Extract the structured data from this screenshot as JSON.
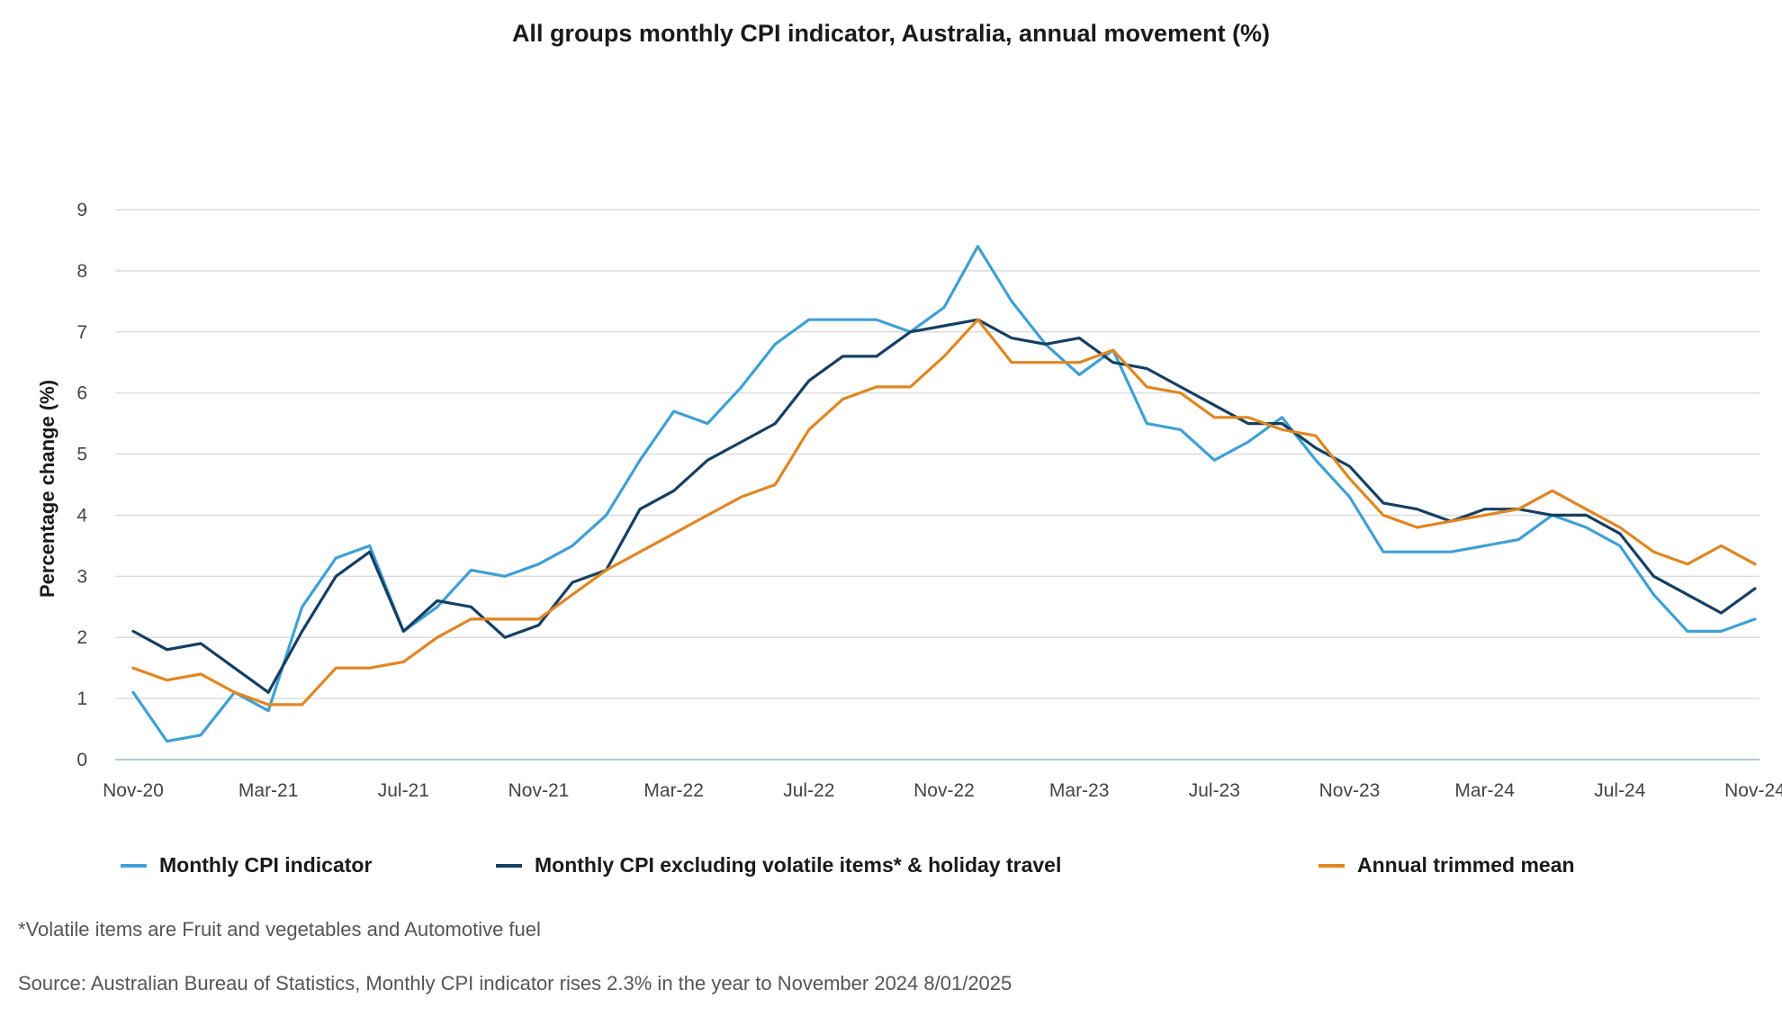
{
  "chart_data": {
    "type": "line",
    "title": "All groups monthly CPI indicator, Australia, annual movement (%)",
    "ylabel": "Percentage change (%)",
    "xlabel": "",
    "ylim": [
      0,
      9
    ],
    "yticks": [
      0,
      1,
      2,
      3,
      4,
      5,
      6,
      7,
      8,
      9
    ],
    "grid": true,
    "legend_position": "bottom",
    "x": [
      "Nov-20",
      "Dec-20",
      "Jan-21",
      "Feb-21",
      "Mar-21",
      "Apr-21",
      "May-21",
      "Jun-21",
      "Jul-21",
      "Aug-21",
      "Sep-21",
      "Oct-21",
      "Nov-21",
      "Dec-21",
      "Jan-22",
      "Feb-22",
      "Mar-22",
      "Apr-22",
      "May-22",
      "Jun-22",
      "Jul-22",
      "Aug-22",
      "Sep-22",
      "Oct-22",
      "Nov-22",
      "Dec-22",
      "Jan-23",
      "Feb-23",
      "Mar-23",
      "Apr-23",
      "May-23",
      "Jun-23",
      "Jul-23",
      "Aug-23",
      "Sep-23",
      "Oct-23",
      "Nov-23",
      "Dec-23",
      "Jan-24",
      "Feb-24",
      "Mar-24",
      "Apr-24",
      "May-24",
      "Jun-24",
      "Jul-24",
      "Aug-24",
      "Sep-24",
      "Oct-24",
      "Nov-24"
    ],
    "x_tick_labels": [
      "Nov-20",
      "Mar-21",
      "Jul-21",
      "Nov-21",
      "Mar-22",
      "Jul-22",
      "Nov-22",
      "Mar-23",
      "Jul-23",
      "Nov-23",
      "Mar-24",
      "Jul-24",
      "Nov-24"
    ],
    "series": [
      {
        "name": "Monthly CPI indicator",
        "color": "#3fa0d4",
        "values": [
          1.1,
          0.3,
          0.4,
          1.1,
          0.8,
          2.5,
          3.3,
          3.5,
          2.1,
          2.5,
          3.1,
          3.0,
          3.2,
          3.5,
          4.0,
          4.9,
          5.7,
          5.5,
          6.1,
          6.8,
          7.2,
          7.2,
          7.2,
          7.0,
          7.4,
          8.4,
          7.5,
          6.8,
          6.3,
          6.7,
          5.5,
          5.4,
          4.9,
          5.2,
          5.6,
          4.9,
          4.3,
          3.4,
          3.4,
          3.4,
          3.5,
          3.6,
          4.0,
          3.8,
          3.5,
          2.7,
          2.1,
          2.1,
          2.3
        ]
      },
      {
        "name": "Monthly CPI excluding volatile items* & holiday travel",
        "color": "#163f63",
        "values": [
          2.1,
          1.8,
          1.9,
          1.5,
          1.1,
          2.1,
          3.0,
          3.4,
          2.1,
          2.6,
          2.5,
          2.0,
          2.2,
          2.9,
          3.1,
          4.1,
          4.4,
          4.9,
          5.2,
          5.5,
          6.2,
          6.6,
          6.6,
          7.0,
          7.1,
          7.2,
          6.9,
          6.8,
          6.9,
          6.5,
          6.4,
          6.1,
          5.8,
          5.5,
          5.5,
          5.1,
          4.8,
          4.2,
          4.1,
          3.9,
          4.1,
          4.1,
          4.0,
          4.0,
          3.7,
          3.0,
          2.7,
          2.4,
          2.8
        ]
      },
      {
        "name": "Annual trimmed mean",
        "color": "#e08622",
        "values": [
          1.5,
          1.3,
          1.4,
          1.1,
          0.9,
          0.9,
          1.5,
          1.5,
          1.6,
          2.0,
          2.3,
          2.3,
          2.3,
          2.7,
          3.1,
          3.4,
          3.7,
          4.0,
          4.3,
          4.5,
          5.4,
          5.9,
          6.1,
          6.1,
          6.6,
          7.2,
          6.5,
          6.5,
          6.5,
          6.7,
          6.1,
          6.0,
          5.6,
          5.6,
          5.4,
          5.3,
          4.6,
          4.0,
          3.8,
          3.9,
          4.0,
          4.1,
          4.4,
          4.1,
          3.8,
          3.4,
          3.2,
          3.5,
          3.2
        ]
      }
    ]
  },
  "footnote": "*Volatile items are Fruit and vegetables and Automotive fuel",
  "source": "Source: Australian Bureau of Statistics, Monthly CPI indicator rises 2.3% in the year to November 2024 8/01/2025"
}
